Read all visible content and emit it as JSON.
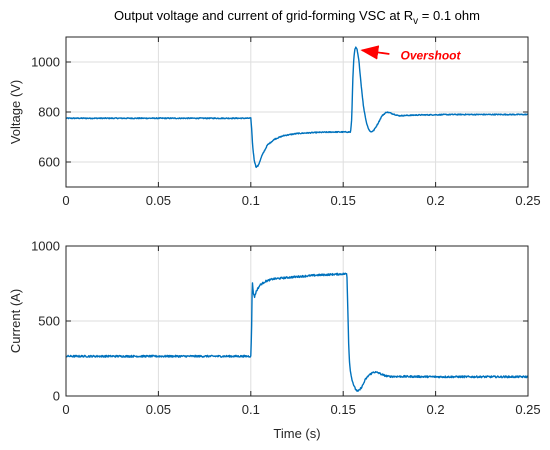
{
  "colors": {
    "series": "#0072BD",
    "annotation": "#FF0000",
    "axis": "#262626",
    "grid": "#DEDEDE"
  },
  "chart_data": [
    {
      "type": "line",
      "title_parts": [
        "Output voltage and current of grid-forming VSC at R",
        "v",
        " = 0.1 ohm"
      ],
      "xlabel": "",
      "ylabel": "Voltage (V)",
      "xlim": [
        0,
        0.25
      ],
      "ylim": [
        500,
        1100
      ],
      "xticks": [
        0,
        0.05,
        0.1,
        0.15,
        0.2,
        0.25
      ],
      "xtick_labels": [
        "0",
        "0.05",
        "0.1",
        "0.15",
        "0.2",
        "0.25"
      ],
      "yticks": [
        600,
        800,
        1000
      ],
      "ytick_labels": [
        "600",
        "800",
        "1000"
      ],
      "grid": true,
      "noise": 2,
      "annotation": {
        "text": "Overshoot",
        "point": [
          0.157,
          1055
        ],
        "text_at": [
          0.181,
          1010
        ],
        "tail": [
          0.175,
          1032
        ]
      },
      "series": [
        {
          "x": [
            0,
            0.05,
            0.1,
            0.1004,
            0.101,
            0.1018,
            0.1028,
            0.104,
            0.106,
            0.109,
            0.113,
            0.118,
            0.125,
            0.135,
            0.145,
            0.154,
            0.1546,
            0.1552,
            0.1557,
            0.1563,
            0.1568,
            0.1575,
            0.1585,
            0.1597,
            0.161,
            0.1625,
            0.1638,
            0.165,
            0.1665,
            0.1685,
            0.171,
            0.1735,
            0.176,
            0.18,
            0.19,
            0.21,
            0.25
          ],
          "y": [
            775,
            775,
            775,
            740,
            665,
            610,
            580,
            585,
            625,
            668,
            692,
            706,
            714,
            718,
            720,
            720,
            770,
            930,
            1010,
            1050,
            1058,
            1050,
            1005,
            910,
            820,
            760,
            730,
            720,
            726,
            750,
            785,
            800,
            795,
            785,
            788,
            790,
            790
          ]
        }
      ]
    },
    {
      "type": "line",
      "title": "",
      "xlabel": "Time (s)",
      "ylabel": "Current (A)",
      "xlim": [
        0,
        0.25
      ],
      "ylim": [
        0,
        1000
      ],
      "xticks": [
        0,
        0.05,
        0.1,
        0.15,
        0.2,
        0.25
      ],
      "xtick_labels": [
        "0",
        "0.05",
        "0.1",
        "0.15",
        "0.2",
        "0.25"
      ],
      "yticks": [
        0,
        500,
        1000
      ],
      "ytick_labels": [
        "0",
        "500",
        "1000"
      ],
      "grid": true,
      "noise": 6,
      "series": [
        {
          "x": [
            0,
            0.05,
            0.1,
            0.1004,
            0.1008,
            0.1012,
            0.102,
            0.103,
            0.105,
            0.108,
            0.112,
            0.12,
            0.135,
            0.152,
            0.1525,
            0.153,
            0.1535,
            0.1542,
            0.155,
            0.156,
            0.157,
            0.158,
            0.1592,
            0.1605,
            0.162,
            0.164,
            0.1665,
            0.169,
            0.1715,
            0.1745,
            0.178,
            0.185,
            0.2,
            0.25
          ],
          "y": [
            265,
            265,
            265,
            420,
            780,
            700,
            660,
            700,
            740,
            765,
            780,
            790,
            805,
            815,
            580,
            330,
            210,
            140,
            100,
            60,
            40,
            30,
            45,
            70,
            110,
            140,
            160,
            155,
            140,
            130,
            130,
            130,
            128,
            128
          ]
        }
      ]
    }
  ]
}
